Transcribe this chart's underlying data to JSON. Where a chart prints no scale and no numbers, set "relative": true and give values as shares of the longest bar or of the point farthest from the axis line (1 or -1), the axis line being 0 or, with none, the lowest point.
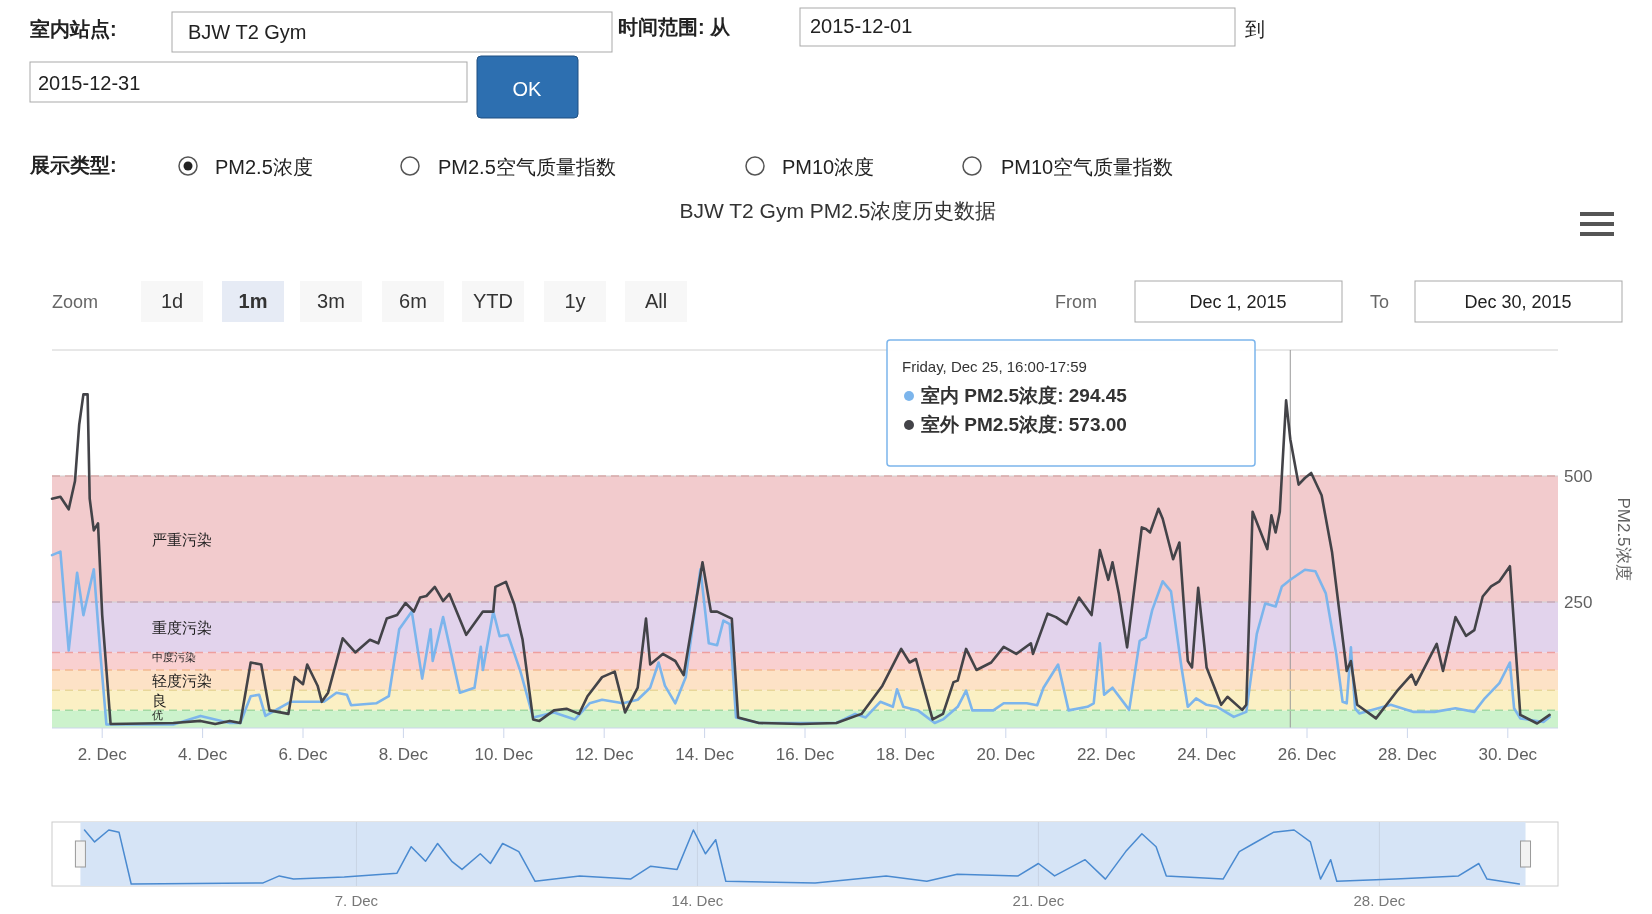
{
  "chart_data": [
    {
      "type": "line",
      "title": "BJW T2 Gym PM2.5浓度历史数据",
      "ylabel": "PM2.5浓度",
      "annotations": [
        "室内站点:",
        "BJW T2 Gym",
        "时间范围: 从",
        "2015-12-01",
        "到",
        "2015-12-31",
        "OK",
        "展示类型:",
        "PM2.5浓度",
        "PM2.5空气质量指数",
        "PM10浓度",
        "PM10空气质量指数",
        "Zoom",
        "1d",
        "1m",
        "3m",
        "6m",
        "YTD",
        "1y",
        "All",
        "From",
        "Dec 1, 2015",
        "To",
        "Dec 30, 2015",
        "Friday, Dec 25, 16:00-17:59",
        "室内 PM2.5浓度: 294.45",
        "室外 PM2.5浓度: 573.00"
      ],
      "xlim": [
        "2015-12-01",
        "2015-12-31"
      ],
      "xticks": [
        {
          "value": "2015-12-02",
          "label": "2. Dec"
        },
        {
          "value": "2015-12-04",
          "label": "4. Dec"
        },
        {
          "value": "2015-12-06",
          "label": "6. Dec"
        },
        {
          "value": "2015-12-08",
          "label": "8. Dec"
        },
        {
          "value": "2015-12-10",
          "label": "10. Dec"
        },
        {
          "value": "2015-12-12",
          "label": "12. Dec"
        },
        {
          "value": "2015-12-14",
          "label": "14. Dec"
        },
        {
          "value": "2015-12-16",
          "label": "16. Dec"
        },
        {
          "value": "2015-12-18",
          "label": "18. Dec"
        },
        {
          "value": "2015-12-20",
          "label": "20. Dec"
        },
        {
          "value": "2015-12-22",
          "label": "22. Dec"
        },
        {
          "value": "2015-12-24",
          "label": "24. Dec"
        },
        {
          "value": "2015-12-26",
          "label": "26. Dec"
        },
        {
          "value": "2015-12-28",
          "label": "28. Dec"
        },
        {
          "value": "2015-12-30",
          "label": "30. Dec"
        }
      ],
      "ylim": [
        0,
        750
      ],
      "yticks": [
        250,
        500,
        {
          "value": 750,
          "label": null
        }
      ],
      "grid": "y",
      "bands": [
        {
          "axis": "y",
          "from": 0,
          "to": 35,
          "label": "优",
          "color": "#ccf2cc"
        },
        {
          "axis": "y",
          "from": 35,
          "to": 75,
          "label": "良",
          "color": "#fbf0c4"
        },
        {
          "axis": "y",
          "from": 75,
          "to": 115,
          "label": "轻度污染",
          "color": "#fde2c6"
        },
        {
          "axis": "y",
          "from": 115,
          "to": 150,
          "label": "中度污染",
          "color": "#f9d0d0"
        },
        {
          "axis": "y",
          "from": 150,
          "to": 250,
          "label": "重度污染",
          "color": "#e2d3ec"
        },
        {
          "axis": "y",
          "from": 250,
          "to": 500,
          "label": "严重污染",
          "color": "#f2cbcd"
        }
      ],
      "ref_lines": [
        {
          "axis": "x",
          "value": "2015-12-25T16:00",
          "color": "#999999"
        },
        {
          "axis": "y",
          "value": 35,
          "color": "#a3d9a3",
          "line_style": "dashed"
        },
        {
          "axis": "y",
          "value": 75,
          "color": "#e8d79a",
          "line_style": "dashed"
        },
        {
          "axis": "y",
          "value": 115,
          "color": "#f2b98e",
          "line_style": "dashed"
        },
        {
          "axis": "y",
          "value": 150,
          "color": "#ef9e9e",
          "line_style": "dashed"
        },
        {
          "axis": "y",
          "value": 250,
          "color": "#c9a9b9",
          "line_style": "dashed"
        },
        {
          "axis": "y",
          "value": 500,
          "color": "#d9a9a9",
          "line_style": "dashed"
        }
      ],
      "series": [
        {
          "color": "#7cb5ec",
          "x": [
            "2015-12-01T00:00",
            "2015-12-01T04:00",
            "2015-12-01T08:00",
            "2015-12-01T12:00",
            "2015-12-01T15:00",
            "2015-12-01T20:00",
            "2015-12-01T23:00",
            "2015-12-02T02:00",
            "2015-12-03T10:00",
            "2015-12-03T23:00",
            "2015-12-04T13:00",
            "2015-12-04T18:00",
            "2015-12-04T23:00",
            "2015-12-05T03:00",
            "2015-12-05T06:00",
            "2015-12-05T18:00",
            "2015-12-06T10:00",
            "2015-12-06T16:00",
            "2015-12-06T21:00",
            "2015-12-06T23:00",
            "2015-12-07T11:00",
            "2015-12-07T17:00",
            "2015-12-07T22:00",
            "2015-12-08T04:00",
            "2015-12-08T09:00",
            "2015-12-08T13:00",
            "2015-12-08T14:00",
            "2015-12-08T19:00",
            "2015-12-09T03:00",
            "2015-12-09T10:00",
            "2015-12-09T13:00",
            "2015-12-09T14:00",
            "2015-12-09T19:00",
            "2015-12-09T22:00",
            "2015-12-10T02:00",
            "2015-12-10T08:00",
            "2015-12-10T14:00",
            "2015-12-11T00:00",
            "2015-12-11T10:00",
            "2015-12-11T17:00",
            "2015-12-11T23:00",
            "2015-12-12T09:00",
            "2015-12-12T16:00",
            "2015-12-12T22:00",
            "2015-12-13T02:00",
            "2015-12-13T05:00",
            "2015-12-13T10:00",
            "2015-12-13T15:00",
            "2015-12-13T22:00",
            "2015-12-14T02:00",
            "2015-12-14T06:00",
            "2015-12-14T09:00",
            "2015-12-14T12:00",
            "2015-12-14T15:00",
            "2015-12-15T02:00",
            "2015-12-16T15:00",
            "2015-12-17T00:00",
            "2015-12-17T05:00",
            "2015-12-17T12:00",
            "2015-12-17T18:00",
            "2015-12-17T20:00",
            "2015-12-17T23:00",
            "2015-12-18T06:00",
            "2015-12-18T14:00",
            "2015-12-18T18:00",
            "2015-12-19T01:00",
            "2015-12-19T05:00",
            "2015-12-19T08:00",
            "2015-12-19T18:00",
            "2015-12-19T23:00",
            "2015-12-20T10:00",
            "2015-12-20T15:00",
            "2015-12-20T18:00",
            "2015-12-21T01:00",
            "2015-12-21T06:00",
            "2015-12-21T15:00",
            "2015-12-21T18:00",
            "2015-12-21T21:00",
            "2015-12-21T23:00",
            "2015-12-22T03:00",
            "2015-12-22T11:00",
            "2015-12-22T16:00",
            "2015-12-22T19:00",
            "2015-12-22T22:00",
            "2015-12-23T03:00",
            "2015-12-23T07:00",
            "2015-12-23T12:00",
            "2015-12-23T15:00",
            "2015-12-23T19:00",
            "2015-12-24T00:00",
            "2015-12-24T05:00",
            "2015-12-24T13:00",
            "2015-12-24T19:00",
            "2015-12-25T00:00",
            "2015-12-25T04:00",
            "2015-12-25T09:00",
            "2015-12-25T12:00",
            "2015-12-25T16:00",
            "2015-12-25T23:00",
            "2015-12-26T04:00",
            "2015-12-26T09:00",
            "2015-12-26T14:00",
            "2015-12-26T17:00",
            "2015-12-26T19:00",
            "2015-12-26T21:00",
            "2015-12-26T23:00",
            "2015-12-27T01:00",
            "2015-12-27T16:00",
            "2015-12-28T03:00",
            "2015-12-28T13:00",
            "2015-12-28T23:00",
            "2015-12-29T08:00",
            "2015-12-29T13:00",
            "2015-12-29T20:00",
            "2015-12-30T01:00",
            "2015-12-30T03:00",
            "2015-12-30T06:00",
            "2015-12-30T17:00",
            "2015-12-30T20:00"
          ],
          "values": [
            343,
            350,
            154,
            308,
            224,
            315,
            154,
            7,
            7,
            24,
            10,
            10,
            63,
            66,
            24,
            52,
            52,
            70,
            66,
            45,
            49,
            63,
            196,
            231,
            98,
            196,
            133,
            220,
            70,
            80,
            161,
            115,
            231,
            182,
            185,
            112,
            21,
            31,
            17,
            49,
            56,
            49,
            56,
            80,
            130,
            84,
            49,
            101,
            315,
            168,
            164,
            213,
            206,
            21,
            10,
            10,
            28,
            21,
            52,
            42,
            77,
            42,
            35,
            10,
            17,
            42,
            74,
            35,
            35,
            49,
            49,
            45,
            80,
            126,
            35,
            42,
            49,
            168,
            66,
            80,
            36,
            173,
            180,
            234,
            291,
            271,
            120,
            42,
            59,
            46,
            42,
            22,
            32,
            187,
            247,
            241,
            281,
            294,
            314,
            311,
            267,
            146,
            52,
            49,
            160,
            39,
            29,
            46,
            32,
            32,
            39,
            32,
            59,
            89,
            130,
            39,
            19,
            12,
            22
          ]
        },
        {
          "color": "#434348",
          "x": [
            "2015-12-01T00:00",
            "2015-12-01T04:00",
            "2015-12-01T08:00",
            "2015-12-01T11:00",
            "2015-12-01T13:00",
            "2015-12-01T15:00",
            "2015-12-01T17:00",
            "2015-12-01T18:00",
            "2015-12-01T20:00",
            "2015-12-01T22:00",
            "2015-12-02T00:00",
            "2015-12-02T04:00",
            "2015-12-03T10:00",
            "2015-12-03T23:00",
            "2015-12-04T06:00",
            "2015-12-04T13:00",
            "2015-12-04T18:00",
            "2015-12-04T23:00",
            "2015-12-05T04:00",
            "2015-12-05T08:00",
            "2015-12-05T17:00",
            "2015-12-05T20:00",
            "2015-12-06T00:00",
            "2015-12-06T02:00",
            "2015-12-06T07:00",
            "2015-12-06T09:00",
            "2015-12-06T12:00",
            "2015-12-06T19:00",
            "2015-12-07T01:00",
            "2015-12-07T08:00",
            "2015-12-07T12:00",
            "2015-12-07T16:00",
            "2015-12-07T21:00",
            "2015-12-08T01:00",
            "2015-12-08T05:00",
            "2015-12-08T08:00",
            "2015-12-08T11:00",
            "2015-12-08T15:00",
            "2015-12-08T19:00",
            "2015-12-08T22:00",
            "2015-12-09T06:00",
            "2015-12-09T14:00",
            "2015-12-09T19:00",
            "2015-12-09T20:00",
            "2015-12-10T01:00",
            "2015-12-10T05:00",
            "2015-12-10T09:00",
            "2015-12-10T14:00",
            "2015-12-10T17:00",
            "2015-12-11T00:00",
            "2015-12-11T06:00",
            "2015-12-11T12:00",
            "2015-12-11T16:00",
            "2015-12-11T23:00",
            "2015-12-12T05:00",
            "2015-12-12T10:00",
            "2015-12-12T16:00",
            "2015-12-12T20:00",
            "2015-12-12T22:00",
            "2015-12-13T04:00",
            "2015-12-13T10:00",
            "2015-12-13T14:00",
            "2015-12-13T23:00",
            "2015-12-14T03:00",
            "2015-12-14T06:00",
            "2015-12-14T13:00",
            "2015-12-14T16:00",
            "2015-12-15T02:00",
            "2015-12-15T22:00",
            "2015-12-16T15:00",
            "2015-12-17T03:00",
            "2015-12-17T13:00",
            "2015-12-17T22:00",
            "2015-12-18T02:00",
            "2015-12-18T05:00",
            "2015-12-18T13:00",
            "2015-12-18T18:00",
            "2015-12-18T23:00",
            "2015-12-19T01:00",
            "2015-12-19T05:00",
            "2015-12-19T10:00",
            "2015-12-19T17:00",
            "2015-12-19T23:00",
            "2015-12-20T05:00",
            "2015-12-20T12:00",
            "2015-12-20T13:00",
            "2015-12-20T20:00",
            "2015-12-21T00:00",
            "2015-12-21T05:00",
            "2015-12-21T11:00",
            "2015-12-21T17:00",
            "2015-12-21T21:00",
            "2015-12-22T01:00",
            "2015-12-22T03:00",
            "2015-12-22T06:00",
            "2015-12-22T10:00",
            "2015-12-22T17:00",
            "2015-12-22T19:00",
            "2015-12-22T21:00",
            "2015-12-23T01:00",
            "2015-12-23T03:00",
            "2015-12-23T08:00",
            "2015-12-23T11:00",
            "2015-12-23T15:00",
            "2015-12-23T17:00",
            "2015-12-23T20:00",
            "2015-12-23T23:00",
            "2015-12-24T00:00",
            "2015-12-24T07:00",
            "2015-12-24T10:00",
            "2015-12-24T17:00",
            "2015-12-24T19:00",
            "2015-12-24T22:00",
            "2015-12-25T05:00",
            "2015-12-25T07:00",
            "2015-12-25T09:00",
            "2015-12-25T11:00",
            "2015-12-25T14:00",
            "2015-12-25T16:00",
            "2015-12-25T20:00",
            "2015-12-25T23:00",
            "2015-12-26T02:00",
            "2015-12-26T07:00",
            "2015-12-26T12:00",
            "2015-12-26T19:00",
            "2015-12-26T21:00",
            "2015-12-27T00:00",
            "2015-12-27T09:00",
            "2015-12-27T19:00",
            "2015-12-28T02:00",
            "2015-12-28T04:00",
            "2015-12-28T14:00",
            "2015-12-28T17:00",
            "2015-12-28T23:00",
            "2015-12-29T04:00",
            "2015-12-29T08:00",
            "2015-12-29T12:00",
            "2015-12-29T16:00",
            "2015-12-29T20:00",
            "2015-12-30T01:00",
            "2015-12-30T06:00",
            "2015-12-30T14:00",
            "2015-12-30T20:00"
          ],
          "values": [
            455,
            459,
            434,
            490,
            602,
            662,
            662,
            455,
            392,
            406,
            224,
            8,
            10,
            14,
            8,
            14,
            10,
            130,
            126,
            35,
            28,
            101,
            87,
            126,
            84,
            52,
            70,
            178,
            150,
            175,
            168,
            217,
            224,
            248,
            231,
            259,
            262,
            280,
            252,
            266,
            185,
            231,
            231,
            280,
            290,
            245,
            175,
            17,
            14,
            35,
            38,
            28,
            63,
            101,
            112,
            31,
            80,
            217,
            126,
            147,
            133,
            105,
            329,
            231,
            231,
            217,
            21,
            10,
            8,
            10,
            28,
            84,
            157,
            130,
            137,
            17,
            28,
            91,
            94,
            157,
            115,
            130,
            161,
            147,
            168,
            147,
            227,
            220,
            206,
            259,
            224,
            353,
            294,
            329,
            267,
            160,
            398,
            395,
            388,
            435,
            415,
            335,
            368,
            133,
            120,
            278,
            160,
            120,
            46,
            62,
            36,
            46,
            429,
            355,
            422,
            388,
            429,
            650,
            573,
            483,
            496,
            506,
            462,
            348,
            113,
            133,
            46,
            19,
            73,
            106,
            86,
            167,
            113,
            220,
            183,
            194,
            261,
            281,
            291,
            321,
            26,
            9,
            26
          ]
        }
      ]
    },
    {
      "type": "line",
      "relative": true,
      "tick_labels": "x",
      "grid": "x",
      "xlim": [
        "2015-11-30T18:00",
        "2015-12-31T16:00"
      ],
      "xticks": [
        {
          "value": "2015-12-07",
          "label": "7. Dec"
        },
        {
          "value": "2015-12-14",
          "label": "14. Dec"
        },
        {
          "value": "2015-12-21",
          "label": "21. Dec"
        },
        {
          "value": "2015-12-28",
          "label": "28. Dec"
        }
      ],
      "bands": [
        {
          "axis": "x",
          "from": "2015-12-01T08:00",
          "to": "2015-12-31T00:00",
          "color": "#d6e4f6"
        }
      ],
      "series": [
        {
          "color": "#4a8ad0",
          "x": [
            "2015-12-01T10:00",
            "2015-12-01T15:00",
            "2015-12-01T22:00",
            "2015-12-02T03:00",
            "2015-12-02T09:00",
            "2015-12-05T02:00",
            "2015-12-05T10:00",
            "2015-12-05T17:00",
            "2015-12-06T18:00",
            "2015-12-07T20:00",
            "2015-12-08T03:00",
            "2015-12-08T10:00",
            "2015-12-08T16:00",
            "2015-12-08T23:00",
            "2015-12-09T04:00",
            "2015-12-09T13:00",
            "2015-12-09T18:00",
            "2015-12-10T00:00",
            "2015-12-10T08:00",
            "2015-12-10T16:00",
            "2015-12-11T14:00",
            "2015-12-12T15:00",
            "2015-12-13T01:00",
            "2015-12-13T14:00",
            "2015-12-13T22:00",
            "2015-12-14T04:00",
            "2015-12-14T09:00",
            "2015-12-14T14:00",
            "2015-12-16T10:00",
            "2015-12-17T21:00",
            "2015-12-18T17:00",
            "2015-12-19T08:00",
            "2015-12-20T14:00",
            "2015-12-21T00:00",
            "2015-12-21T08:00",
            "2015-12-21T23:00",
            "2015-12-22T09:00",
            "2015-12-22T19:00",
            "2015-12-23T03:00",
            "2015-12-23T10:00",
            "2015-12-23T15:00",
            "2015-12-24T19:00",
            "2015-12-25T03:00",
            "2015-12-25T10:00",
            "2015-12-25T20:00",
            "2015-12-26T06:00",
            "2015-12-26T14:00",
            "2015-12-26T19:00",
            "2015-12-27T00:00",
            "2015-12-27T03:00",
            "2015-12-28T08:00",
            "2015-12-29T15:00",
            "2015-12-30T01:00",
            "2015-12-30T05:00",
            "2015-12-30T21:00"
          ],
          "values": [
            1,
            0.78,
            1,
            0.96,
            0,
            0.02,
            0.15,
            0.09,
            0.13,
            0.2,
            0.69,
            0.42,
            0.75,
            0.42,
            0.27,
            0.56,
            0.38,
            0.75,
            0.6,
            0.05,
            0.15,
            0.09,
            0.33,
            0.27,
            1,
            0.56,
            0.82,
            0.05,
            0.02,
            0.15,
            0.05,
            0.18,
            0.15,
            0.38,
            0.15,
            0.45,
            0.09,
            0.6,
            0.93,
            0.69,
            0.15,
            0.09,
            0.6,
            0.75,
            0.96,
            1,
            0.78,
            0.09,
            0.45,
            0.05,
            0.09,
            0.15,
            0.38,
            0.09,
            0
          ]
        }
      ]
    }
  ]
}
